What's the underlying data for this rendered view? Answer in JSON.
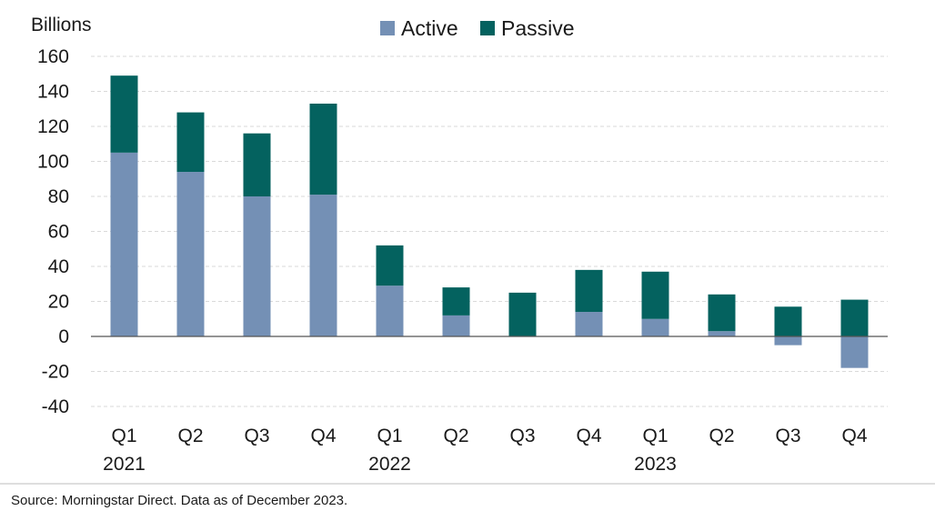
{
  "chart_data": {
    "type": "bar",
    "stacked": true,
    "ylabel": "Billions",
    "ylim": [
      -40,
      160
    ],
    "yticks": [
      160,
      140,
      120,
      100,
      80,
      60,
      40,
      20,
      0,
      -20,
      -40
    ],
    "grid": true,
    "legend_position": "top-center",
    "categories": [
      "Q1",
      "Q2",
      "Q3",
      "Q4",
      "Q1",
      "Q2",
      "Q3",
      "Q4",
      "Q1",
      "Q2",
      "Q3",
      "Q4"
    ],
    "year_labels": [
      {
        "index": 0,
        "label": "2021"
      },
      {
        "index": 4,
        "label": "2022"
      },
      {
        "index": 8,
        "label": "2023"
      }
    ],
    "series": [
      {
        "name": "Active",
        "color": "#7490b5",
        "values": [
          105,
          94,
          80,
          81,
          29,
          12,
          0,
          14,
          10,
          3,
          -5,
          -18
        ]
      },
      {
        "name": "Passive",
        "color": "#04625f",
        "values": [
          44,
          34,
          36,
          52,
          23,
          16,
          25,
          24,
          27,
          21,
          17,
          21
        ]
      }
    ],
    "source": "Source: Morningstar Direct. Data as of December 2023."
  }
}
